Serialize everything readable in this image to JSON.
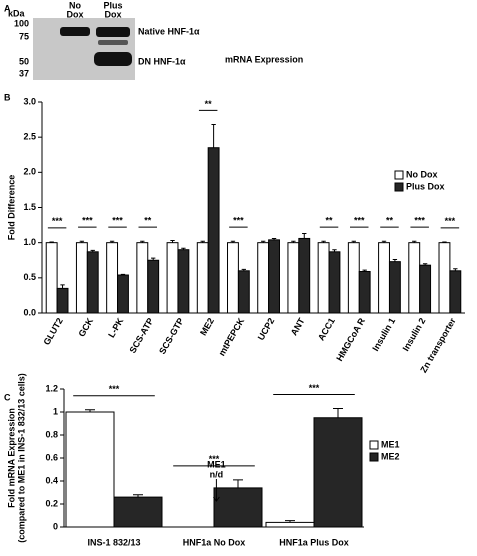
{
  "panel_labels": [
    "A",
    "B",
    "C"
  ],
  "blot": {
    "unit": "kDa",
    "markers": [
      "100",
      "75",
      "50",
      "37"
    ],
    "lanes": [
      [
        "No",
        "Dox"
      ],
      [
        "Plus",
        "Dox"
      ]
    ],
    "bands": [
      "Native HNF-1α",
      "DN HNF-1α"
    ]
  },
  "chart_data": [
    {
      "type": "bar",
      "title": "mRNA Expression",
      "y_label": "Fold Difference",
      "categories": [
        "GLUT2",
        "GCK",
        "L-PK",
        "SCS-ATP",
        "SCS-GTP",
        "ME2",
        "mtPEPCK",
        "UCP2",
        "ANT",
        "ACC1",
        "HMGCoA R",
        "Insulin 1",
        "Insulin 2",
        "Zn transporter"
      ],
      "series": [
        {
          "name": "No Dox",
          "color": "#ffffff",
          "values": [
            1,
            1,
            1,
            1,
            1,
            1,
            1,
            1,
            1,
            1,
            1,
            1,
            1,
            1
          ],
          "errors": [
            0.01,
            0.02,
            0.02,
            0.02,
            0.03,
            0.02,
            0.02,
            0.02,
            0.02,
            0.02,
            0.02,
            0.02,
            0.02,
            0.01
          ]
        },
        {
          "name": "Plus Dox",
          "color": "#262626",
          "values": [
            0.35,
            0.87,
            0.54,
            0.75,
            0.9,
            2.35,
            0.6,
            1.04,
            1.06,
            0.87,
            0.59,
            0.73,
            0.68,
            0.6
          ],
          "errors": [
            0.05,
            0.02,
            0.01,
            0.03,
            0.02,
            0.33,
            0.02,
            0.02,
            0.07,
            0.03,
            0.02,
            0.03,
            0.02,
            0.03
          ]
        }
      ],
      "significance": [
        "***",
        "***",
        "***",
        "**",
        null,
        "**",
        "***",
        null,
        null,
        "**",
        "***",
        "**",
        "***",
        "***"
      ],
      "ylim": [
        0,
        3
      ],
      "yticks": [
        {
          "value": 0,
          "label": "0.0"
        },
        {
          "value": 0.5,
          "label": "0.5"
        },
        {
          "value": 1,
          "label": "1.0"
        },
        {
          "value": 1.5,
          "label": "1.5"
        },
        {
          "value": 2,
          "label": "2.0"
        },
        {
          "value": 2.5,
          "label": "2.5"
        },
        {
          "value": 3,
          "label": "3.0"
        }
      ],
      "legend": "right"
    },
    {
      "type": "bar",
      "y_label": [
        "Fold mRNA Expression",
        "(compared to ME1 in INS-1 832/13 cells)"
      ],
      "categories": [
        "INS-1 832/13",
        "HNF1a No Dox",
        "HNF1a Plus Dox"
      ],
      "series": [
        {
          "name": "ME1",
          "color": "#ffffff",
          "values": [
            1,
            null,
            0.04
          ],
          "errors": [
            0.02,
            null,
            0.015
          ]
        },
        {
          "name": "ME2",
          "color": "#262626",
          "values": [
            0.26,
            0.34,
            0.95
          ],
          "errors": [
            0.02,
            0.07,
            0.08
          ]
        }
      ],
      "significance": [
        "***",
        "***",
        "***"
      ],
      "annotation": [
        "ME1",
        "n/d"
      ],
      "ylim": [
        0,
        1.2
      ],
      "yticks": [
        0,
        0.2,
        0.4,
        0.6,
        0.8,
        1,
        1.2
      ],
      "legend": "right"
    }
  ]
}
